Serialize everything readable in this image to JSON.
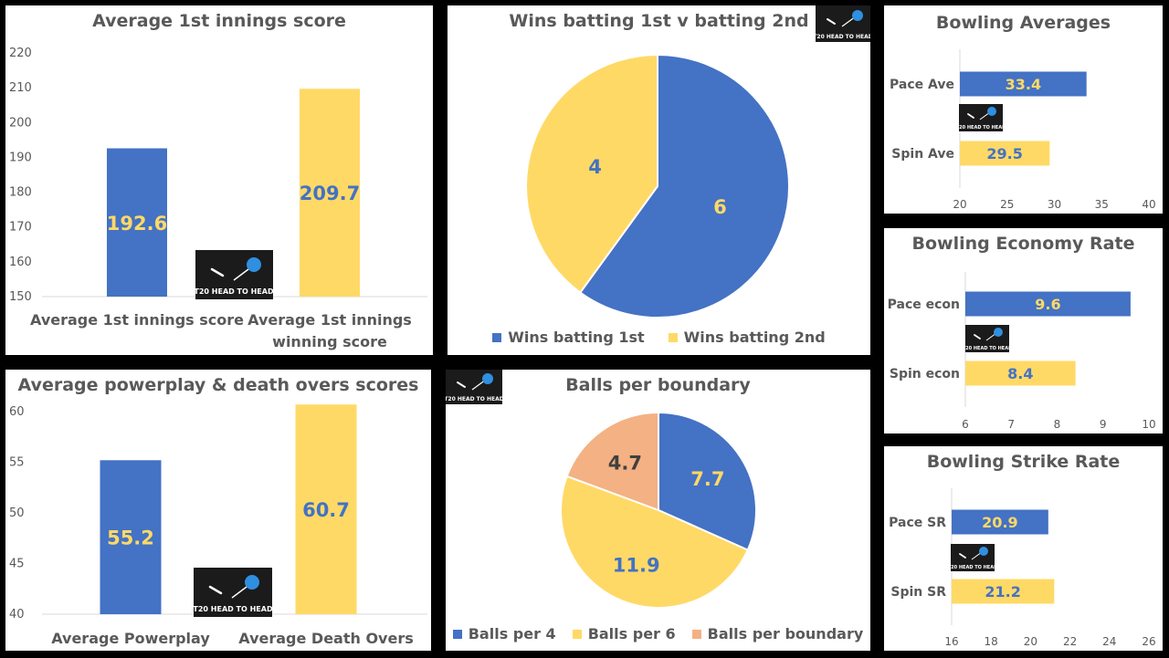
{
  "logo": {
    "text": "T20 HEAD TO HEAD"
  },
  "colors": {
    "blue": "#4472C4",
    "yellow": "#FFD966",
    "orange": "#F4B183",
    "axis": "#595959",
    "label_blue": "#4472C4",
    "label_yellow": "#FFD966"
  },
  "chart_data": [
    {
      "type": "bar",
      "title": "Average 1st innings score",
      "categories": [
        "Average 1st innings score",
        "Average 1st innings winning score"
      ],
      "values": [
        192.6,
        209.7
      ],
      "ylim": [
        150,
        220
      ],
      "yticks": [
        "150",
        "160",
        "170",
        "180",
        "190",
        "200",
        "210",
        "220"
      ],
      "xlabel": "",
      "ylabel": ""
    },
    {
      "type": "pie",
      "title": "Wins batting 1st v batting 2nd",
      "labels": [
        "Wins batting 1st",
        "Wins batting 2nd"
      ],
      "values": [
        6,
        4
      ],
      "legend": "bottom"
    },
    {
      "type": "bar",
      "orientation": "horizontal",
      "title": "Bowling Averages",
      "categories": [
        "Pace Ave",
        "Spin Ave"
      ],
      "values": [
        33.4,
        29.5
      ],
      "xlim": [
        20,
        40
      ],
      "xticks": [
        "20",
        "25",
        "30",
        "35",
        "40"
      ]
    },
    {
      "type": "bar",
      "title": "Average powerplay & death overs scores",
      "categories": [
        "Average Powerplay",
        "Average Death Overs"
      ],
      "values": [
        55.2,
        60.7
      ],
      "ylim": [
        40,
        60
      ],
      "yticks": [
        "40",
        "45",
        "50",
        "55",
        "60"
      ]
    },
    {
      "type": "pie",
      "title": "Balls per boundary",
      "labels": [
        "Balls per 4",
        "Balls per 6",
        "Balls per boundary"
      ],
      "values": [
        7.7,
        11.9,
        4.7
      ],
      "legend": "bottom"
    },
    {
      "type": "bar",
      "orientation": "horizontal",
      "title": "Bowling Economy Rate",
      "categories": [
        "Pace econ",
        "Spin econ"
      ],
      "values": [
        9.6,
        8.4
      ],
      "xlim": [
        6,
        10
      ],
      "xticks": [
        "6",
        "7",
        "8",
        "9",
        "10"
      ]
    },
    {
      "type": "bar",
      "orientation": "horizontal",
      "title": "Bowling Strike Rate",
      "categories": [
        "Pace SR",
        "Spin SR"
      ],
      "values": [
        20.9,
        21.2
      ],
      "xlim": [
        16,
        26
      ],
      "xticks": [
        "16",
        "18",
        "20",
        "22",
        "24",
        "26"
      ]
    }
  ]
}
